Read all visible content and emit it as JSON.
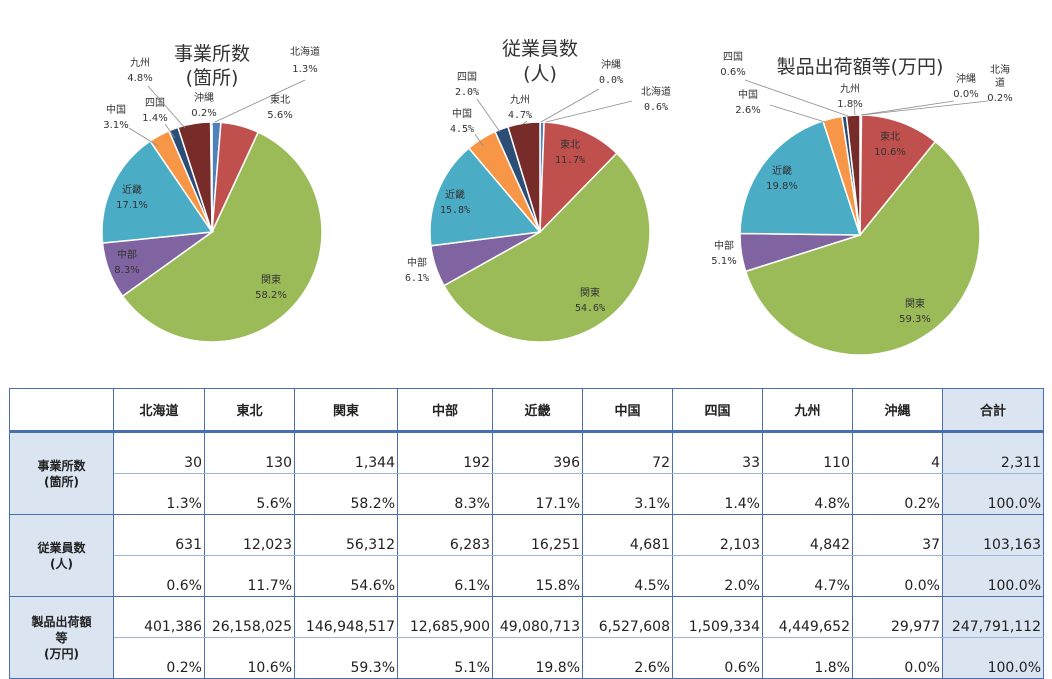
{
  "chart_data": [
    {
      "type": "pie",
      "title": "事業所数",
      "title2": "(箇所)",
      "slices": [
        {
          "label": "北海道",
          "value": 1.3,
          "color": "#4f81bd"
        },
        {
          "label": "東北",
          "value": 5.6,
          "color": "#c0504d"
        },
        {
          "label": "関東",
          "value": 58.2,
          "color": "#9bbb59"
        },
        {
          "label": "中部",
          "value": 8.3,
          "color": "#8064a2"
        },
        {
          "label": "近畿",
          "value": 17.1,
          "color": "#4bacc6"
        },
        {
          "label": "中国",
          "value": 3.1,
          "color": "#f79646"
        },
        {
          "label": "四国",
          "value": 1.4,
          "color": "#2c4d75"
        },
        {
          "label": "九州",
          "value": 4.8,
          "color": "#772c2a"
        },
        {
          "label": "沖縄",
          "value": 0.2,
          "color": "#5f7530"
        }
      ],
      "pct_text": [
        "1.3%",
        "5.6%",
        "58.2%",
        "8.3%",
        "17.1%",
        "3.1%",
        "1.4%",
        "4.8%",
        "0.2%"
      ]
    },
    {
      "type": "pie",
      "title": "従業員数",
      "title2": "(人)",
      "slices": [
        {
          "label": "北海道",
          "value": 0.6,
          "color": "#4f81bd"
        },
        {
          "label": "東北",
          "value": 11.7,
          "color": "#c0504d"
        },
        {
          "label": "関東",
          "value": 54.6,
          "color": "#9bbb59"
        },
        {
          "label": "中部",
          "value": 6.1,
          "color": "#8064a2"
        },
        {
          "label": "近畿",
          "value": 15.8,
          "color": "#4bacc6"
        },
        {
          "label": "中国",
          "value": 4.5,
          "color": "#f79646"
        },
        {
          "label": "四国",
          "value": 2.0,
          "color": "#2c4d75"
        },
        {
          "label": "九州",
          "value": 4.7,
          "color": "#772c2a"
        },
        {
          "label": "沖縄",
          "value": 0.0,
          "color": "#5f7530"
        }
      ],
      "pct_text": [
        "0.6%",
        "11.7%",
        "54.6%",
        "6.1%",
        "15.8%",
        "4.5%",
        "2.0%",
        "4.7%",
        "0.0%"
      ]
    },
    {
      "type": "pie",
      "title": "製品出荷額等(万円)",
      "title2": "",
      "slices": [
        {
          "label": "北海道",
          "value": 0.2,
          "color": "#4f81bd"
        },
        {
          "label": "東北",
          "value": 10.6,
          "color": "#c0504d"
        },
        {
          "label": "関東",
          "value": 59.3,
          "color": "#9bbb59"
        },
        {
          "label": "中部",
          "value": 5.1,
          "color": "#8064a2"
        },
        {
          "label": "近畿",
          "value": 19.8,
          "color": "#4bacc6"
        },
        {
          "label": "中国",
          "value": 2.6,
          "color": "#f79646"
        },
        {
          "label": "四国",
          "value": 0.6,
          "color": "#2c4d75"
        },
        {
          "label": "九州",
          "value": 1.8,
          "color": "#772c2a"
        },
        {
          "label": "沖縄",
          "value": 0.0,
          "color": "#5f7530"
        }
      ],
      "pct_text": [
        "0.2%",
        "10.6%",
        "59.3%",
        "5.1%",
        "19.8%",
        "2.6%",
        "0.6%",
        "1.8%",
        "0.0%"
      ]
    }
  ],
  "table": {
    "headers": [
      "北海道",
      "東北",
      "関東",
      "中部",
      "近畿",
      "中国",
      "四国",
      "九州",
      "沖縄",
      "合計"
    ],
    "rows": [
      {
        "label_line1": "事業所数",
        "label_line2": "(箇所)",
        "label_line3": "",
        "values": [
          "30",
          "130",
          "1,344",
          "192",
          "396",
          "72",
          "33",
          "110",
          "4",
          "2,311"
        ],
        "pcts": [
          "1.3%",
          "5.6%",
          "58.2%",
          "8.3%",
          "17.1%",
          "3.1%",
          "1.4%",
          "4.8%",
          "0.2%",
          "100.0%"
        ]
      },
      {
        "label_line1": "従業員数",
        "label_line2": "(人)",
        "label_line3": "",
        "values": [
          "631",
          "12,023",
          "56,312",
          "6,283",
          "16,251",
          "4,681",
          "2,103",
          "4,842",
          "37",
          "103,163"
        ],
        "pcts": [
          "0.6%",
          "11.7%",
          "54.6%",
          "6.1%",
          "15.8%",
          "4.5%",
          "2.0%",
          "4.7%",
          "0.0%",
          "100.0%"
        ]
      },
      {
        "label_line1": "製品出荷額",
        "label_line2": "等",
        "label_line3": "(万円)",
        "values": [
          "401,386",
          "26,158,025",
          "146,948,517",
          "12,685,900",
          "49,080,713",
          "6,527,608",
          "1,509,334",
          "4,449,652",
          "29,977",
          "247,791,112"
        ],
        "pcts": [
          "0.2%",
          "10.6%",
          "59.3%",
          "5.1%",
          "19.8%",
          "2.6%",
          "0.6%",
          "1.8%",
          "0.0%",
          "100.0%"
        ]
      }
    ]
  }
}
